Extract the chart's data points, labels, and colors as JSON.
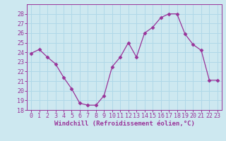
{
  "x": [
    0,
    1,
    2,
    3,
    4,
    5,
    6,
    7,
    8,
    9,
    10,
    11,
    12,
    13,
    14,
    15,
    16,
    17,
    18,
    19,
    20,
    21,
    22,
    23
  ],
  "y": [
    23.9,
    24.3,
    23.5,
    22.8,
    21.4,
    20.2,
    18.7,
    18.5,
    18.5,
    19.5,
    22.5,
    23.5,
    25.0,
    23.5,
    26.0,
    26.6,
    27.6,
    28.0,
    28.0,
    25.9,
    24.8,
    24.2,
    21.1,
    21.1
  ],
  "line_color": "#993399",
  "marker": "D",
  "marker_size": 2.5,
  "bg_color": "#cde8f0",
  "grid_color": "#b0d8e8",
  "xlabel": "Windchill (Refroidissement éolien,°C)",
  "xlabel_fontsize": 6.5,
  "tick_fontsize": 6.0,
  "ylim": [
    18,
    29
  ],
  "yticks": [
    18,
    19,
    20,
    21,
    22,
    23,
    24,
    25,
    26,
    27,
    28
  ],
  "xlim": [
    -0.5,
    23.5
  ],
  "xticks": [
    0,
    1,
    2,
    3,
    4,
    5,
    6,
    7,
    8,
    9,
    10,
    11,
    12,
    13,
    14,
    15,
    16,
    17,
    18,
    19,
    20,
    21,
    22,
    23
  ]
}
